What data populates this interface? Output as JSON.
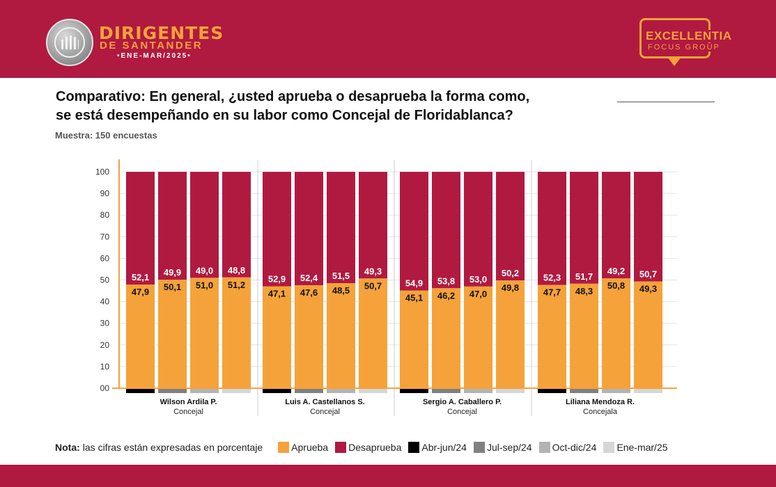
{
  "header": {
    "brand_line1": "DIRIGENTES",
    "brand_line2": "DE SANTANDER",
    "brand_line3": "•ENE-MAR/2025•",
    "partner_line1": "EXCELLENTIA",
    "partner_line2": "FOCUS GROUP"
  },
  "title_line1": "Comparativo: En general, ¿usted aprueba o desaprueba la forma como,",
  "title_line2": "se está desempeñando en su labor como Concejal de Floridablanca?",
  "sample": "Muestra: 150 encuestas",
  "note": {
    "label": "Nota:",
    "text": "las cifras están expresadas en porcentaje"
  },
  "colors": {
    "brand": "#b01a40",
    "accent": "#f5a23a",
    "aprueba": "#f5a23a",
    "desaprueba": "#b01a40"
  },
  "chart_data": {
    "type": "bar",
    "stacked": true,
    "ylim": [
      0,
      100
    ],
    "yticks": [
      "00",
      "10",
      "20",
      "30",
      "40",
      "50",
      "60",
      "70",
      "80",
      "90",
      "100"
    ],
    "grid": true,
    "legend": [
      {
        "name": "Aprueba",
        "color": "#f5a23a"
      },
      {
        "name": "Desaprueba",
        "color": "#b01a40"
      },
      {
        "name": "Abr-jun/24",
        "color": "#000000"
      },
      {
        "name": "Jul-sep/24",
        "color": "#808080"
      },
      {
        "name": "Oct-dic/24",
        "color": "#b3b3b3"
      },
      {
        "name": "Ene-mar/25",
        "color": "#d6d6d6"
      }
    ],
    "periods": [
      "Abr-jun/24",
      "Jul-sep/24",
      "Oct-dic/24",
      "Ene-mar/25"
    ],
    "groups": [
      {
        "name": "Wilson Ardila P.",
        "role": "Concejal",
        "aprueba": [
          "47,9",
          "50,1",
          "51,0",
          "51,2"
        ],
        "desaprueba": [
          "52,1",
          "49,9",
          "49,0",
          "48,8"
        ]
      },
      {
        "name": "Luis A. Castellanos S.",
        "role": "Concejal",
        "aprueba": [
          "47,1",
          "47,6",
          "48,5",
          "50,7"
        ],
        "desaprueba": [
          "52,9",
          "52,4",
          "51,5",
          "49,3"
        ]
      },
      {
        "name": "Sergio A. Caballero P.",
        "role": "Concejal",
        "aprueba": [
          "45,1",
          "46,2",
          "47,0",
          "49,8"
        ],
        "desaprueba": [
          "54,9",
          "53,8",
          "53,0",
          "50,2"
        ]
      },
      {
        "name": "Liliana Mendoza R.",
        "role": "Concejala",
        "aprueba": [
          "47,7",
          "48,3",
          "50,8",
          "49,3"
        ],
        "desaprueba": [
          "52,3",
          "51,7",
          "49,2",
          "50,7"
        ]
      }
    ]
  }
}
